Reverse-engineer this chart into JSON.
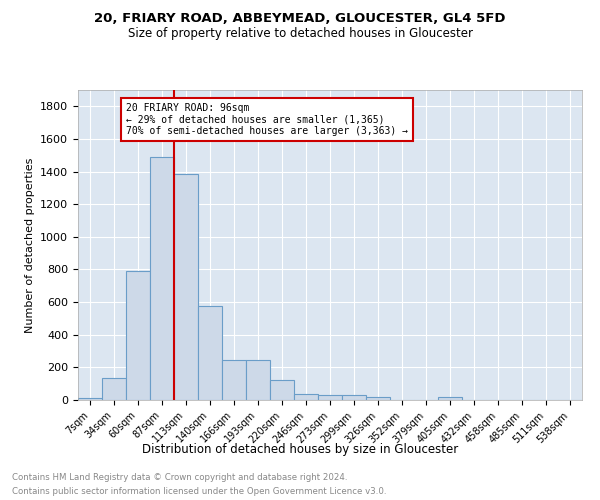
{
  "title1": "20, FRIARY ROAD, ABBEYMEAD, GLOUCESTER, GL4 5FD",
  "title2": "Size of property relative to detached houses in Gloucester",
  "xlabel": "Distribution of detached houses by size in Gloucester",
  "ylabel": "Number of detached properties",
  "bar_labels": [
    "7sqm",
    "34sqm",
    "60sqm",
    "87sqm",
    "113sqm",
    "140sqm",
    "166sqm",
    "193sqm",
    "220sqm",
    "246sqm",
    "273sqm",
    "299sqm",
    "326sqm",
    "352sqm",
    "379sqm",
    "405sqm",
    "432sqm",
    "458sqm",
    "485sqm",
    "511sqm",
    "538sqm"
  ],
  "bar_values": [
    15,
    135,
    790,
    1490,
    1385,
    575,
    247,
    247,
    120,
    38,
    28,
    28,
    18,
    0,
    0,
    18,
    0,
    0,
    0,
    0,
    0
  ],
  "bar_color": "#cdd9e8",
  "bar_edge_color": "#6a9dc8",
  "vline_color": "#cc0000",
  "annotation_box_color": "#ffffff",
  "annotation_box_edge": "#cc0000",
  "ylim": [
    0,
    1900
  ],
  "yticks": [
    0,
    200,
    400,
    600,
    800,
    1000,
    1200,
    1400,
    1600,
    1800
  ],
  "grid_color": "#ffffff",
  "bg_color": "#dce6f1",
  "property_line_label": "20 FRIARY ROAD: 96sqm",
  "annotation_line1": "← 29% of detached houses are smaller (1,365)",
  "annotation_line2": "70% of semi-detached houses are larger (3,363) →",
  "footnote1": "Contains HM Land Registry data © Crown copyright and database right 2024.",
  "footnote2": "Contains public sector information licensed under the Open Government Licence v3.0."
}
